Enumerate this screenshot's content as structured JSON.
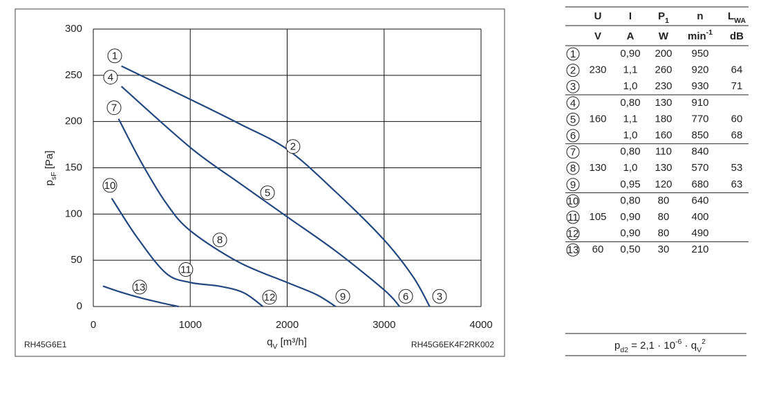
{
  "chart_data": {
    "type": "line",
    "ylabel": [
      {
        "text": "p"
      },
      {
        "text": "sF",
        "shift": "sub"
      },
      {
        "text": " [Pa]"
      }
    ],
    "xlabel": [
      {
        "text": "q"
      },
      {
        "text": "V",
        "shift": "sub"
      },
      {
        "text": " [m³/h]"
      }
    ],
    "note_left": "RH45G6E1",
    "note_right": "RH45G6EK4F2RK002",
    "xlim": [
      0,
      4000
    ],
    "xticks": [
      0,
      1000,
      2000,
      3000,
      4000
    ],
    "ylim": [
      0,
      300
    ],
    "yticks": [
      0,
      50,
      100,
      150,
      200,
      250,
      300
    ],
    "grid": true,
    "color": "#23477f",
    "series": [
      {
        "x": [
          290,
          1000,
          1500,
          2000,
          2500,
          3000,
          3300,
          3470
        ],
        "y": [
          260,
          224,
          198,
          170,
          124,
          72,
          32,
          0
        ]
      },
      {
        "x": [
          290,
          1000,
          1500,
          2000,
          2500,
          3000,
          3160
        ],
        "y": [
          238,
          172,
          134,
          97,
          60,
          18,
          0
        ]
      },
      {
        "x": [
          260,
          500,
          750,
          1000,
          1500,
          2000,
          2300,
          2500
        ],
        "y": [
          203,
          155,
          112,
          82,
          48,
          26,
          13,
          0
        ]
      },
      {
        "x": [
          190,
          450,
          750,
          1000,
          1300,
          1550,
          1750
        ],
        "y": [
          117,
          75,
          36,
          26,
          22,
          15,
          0
        ]
      },
      {
        "x": [
          100,
          300,
          500,
          700,
          880
        ],
        "y": [
          22,
          15,
          9,
          4,
          0
        ]
      }
    ],
    "annotations": [
      {
        "text": "1",
        "x": 221,
        "y": 271
      },
      {
        "text": "2",
        "x": 2060,
        "y": 173
      },
      {
        "text": "3",
        "x": 3572,
        "y": 11
      },
      {
        "text": "4",
        "x": 178,
        "y": 248
      },
      {
        "text": "5",
        "x": 1797,
        "y": 123
      },
      {
        "text": "6",
        "x": 3223,
        "y": 11
      },
      {
        "text": "7",
        "x": 214,
        "y": 215
      },
      {
        "text": "8",
        "x": 1305,
        "y": 72
      },
      {
        "text": "9",
        "x": 2574,
        "y": 11
      },
      {
        "text": "10",
        "x": 171,
        "y": 131
      },
      {
        "text": "11",
        "x": 955,
        "y": 40
      },
      {
        "text": "12",
        "x": 1818,
        "y": 10
      },
      {
        "text": "13",
        "x": 478,
        "y": 21
      }
    ]
  },
  "table": {
    "header": [
      [
        {
          "text": "U"
        }
      ],
      [
        {
          "text": "I"
        }
      ],
      [
        {
          "text": "P"
        },
        {
          "text": "1",
          "shift": "sub"
        }
      ],
      [
        {
          "text": "n"
        }
      ],
      [
        {
          "text": "L"
        },
        {
          "text": "WA",
          "shift": "sub"
        }
      ]
    ],
    "units": [
      [
        {
          "text": "V"
        }
      ],
      [
        {
          "text": "A"
        }
      ],
      [
        {
          "text": "W"
        }
      ],
      [
        {
          "text": "min"
        },
        {
          "text": "-1",
          "shift": "super"
        }
      ],
      [
        {
          "text": "dB"
        }
      ]
    ],
    "rows": [
      [
        "1",
        null,
        "0,90",
        "200",
        "950",
        null
      ],
      [
        "2",
        "230",
        "1,1",
        "260",
        "920",
        "64"
      ],
      [
        "3",
        null,
        "1,0",
        "230",
        "930",
        "71"
      ],
      [
        "4",
        null,
        "0,80",
        "130",
        "910",
        null
      ],
      [
        "5",
        "160",
        "1,1",
        "180",
        "770",
        "60"
      ],
      [
        "6",
        null,
        "1,0",
        "160",
        "850",
        "68"
      ],
      [
        "7",
        null,
        "0,80",
        "110",
        "840",
        null
      ],
      [
        "8",
        "130",
        "1,0",
        "130",
        "570",
        "53"
      ],
      [
        "9",
        null,
        "0,95",
        "120",
        "680",
        "63"
      ],
      [
        "10",
        null,
        "0,80",
        "80",
        "640",
        null
      ],
      [
        "11",
        "105",
        "0,90",
        "80",
        "400",
        null
      ],
      [
        "12",
        null,
        "0,90",
        "80",
        "490",
        null
      ],
      [
        "13",
        "60",
        "0,50",
        "30",
        "210",
        null
      ]
    ],
    "formula": [
      {
        "text": "p"
      },
      {
        "text": "d2",
        "shift": "sub"
      },
      {
        "text": " = 2,1 · 10"
      },
      {
        "text": "-6",
        "shift": "super"
      },
      {
        "text": " · q"
      },
      {
        "text": "V",
        "shift": "sub"
      },
      {
        "text": "2",
        "shift": "super"
      }
    ]
  }
}
